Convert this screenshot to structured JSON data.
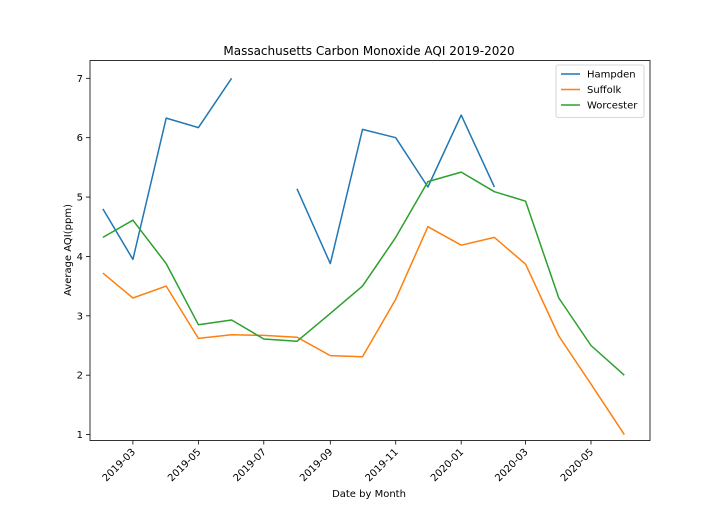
{
  "chart_data": {
    "type": "line",
    "title": "Massachusetts Carbon Monoxide AQI 2019-2020",
    "xlabel": "Date by Month",
    "ylabel": "Average AQI(ppm)",
    "x": [
      "2019-02",
      "2019-03",
      "2019-04",
      "2019-05",
      "2019-06",
      "2019-07",
      "2019-08",
      "2019-09",
      "2019-10",
      "2019-11",
      "2019-12",
      "2020-01",
      "2020-02",
      "2020-03",
      "2020-04",
      "2020-05",
      "2020-06"
    ],
    "x_ticks": [
      "2019-03",
      "2019-05",
      "2019-07",
      "2019-09",
      "2019-11",
      "2020-01",
      "2020-03",
      "2020-05"
    ],
    "y_ticks": [
      1,
      2,
      3,
      4,
      5,
      6,
      7
    ],
    "ylim": [
      0.9,
      7.3
    ],
    "xlim": [
      "2019-01-20",
      "2020-06-25"
    ],
    "grid": false,
    "legend_position": "top-right",
    "series": [
      {
        "name": "Hampden",
        "color": "#1f77b4",
        "values": [
          4.8,
          3.95,
          6.33,
          6.17,
          7.0,
          null,
          5.14,
          3.88,
          6.14,
          6.0,
          5.17,
          6.38,
          5.17,
          null,
          null,
          null,
          null
        ]
      },
      {
        "name": "Suffolk",
        "color": "#ff7f0e",
        "values": [
          3.72,
          3.3,
          3.5,
          2.62,
          2.68,
          2.67,
          2.64,
          2.33,
          2.31,
          3.28,
          4.5,
          4.19,
          4.32,
          3.87,
          2.66,
          1.85,
          1.0
        ]
      },
      {
        "name": "Worcester",
        "color": "#2ca02c",
        "values": [
          4.32,
          4.61,
          3.88,
          2.85,
          2.93,
          2.61,
          2.57,
          3.04,
          3.5,
          4.32,
          5.26,
          5.42,
          5.09,
          4.93,
          3.3,
          2.5,
          2.0
        ]
      }
    ]
  }
}
